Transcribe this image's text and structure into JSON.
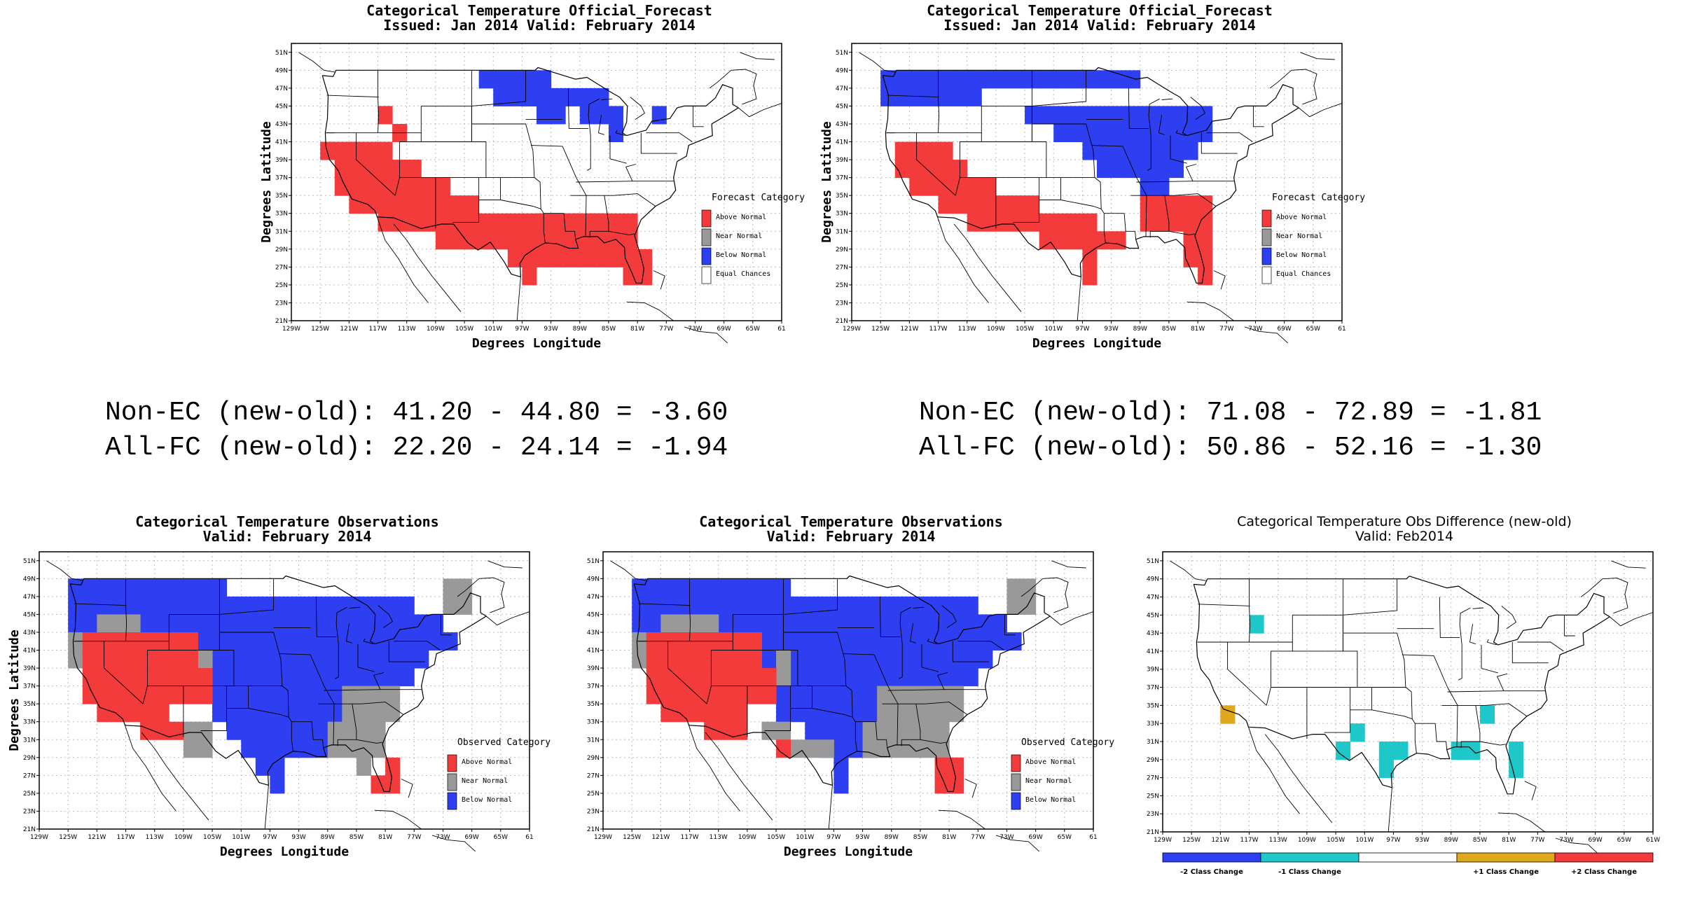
{
  "maps": [
    {
      "id": "fc1",
      "title": [
        "Categorical Temperature Official_Forecast",
        "Issued: Jan 2014 Valid: February 2014"
      ],
      "xlabel": "Degrees Longitude",
      "ylabel": "Degrees Latitude",
      "legend": {
        "title": "Forecast Category",
        "items": [
          {
            "label": "Above Normal",
            "color": "#f33b3b"
          },
          {
            "label": "Near Normal",
            "color": "#999999"
          },
          {
            "label": "Below Normal",
            "color": "#2e3ff2"
          },
          {
            "label": "Equal Chances",
            "color": "#ffffff"
          }
        ]
      }
    },
    {
      "id": "fc2",
      "title": [
        "Categorical Temperature Official_Forecast",
        "Issued: Jan 2014 Valid: February 2014"
      ],
      "xlabel": "Degrees Longitude",
      "ylabel": "Degrees Latitude",
      "legend": {
        "title": "Forecast Category",
        "items": [
          {
            "label": "Above Normal",
            "color": "#f33b3b"
          },
          {
            "label": "Near Normal",
            "color": "#999999"
          },
          {
            "label": "Below Normal",
            "color": "#2e3ff2"
          },
          {
            "label": "Equal Chances",
            "color": "#ffffff"
          }
        ]
      }
    },
    {
      "id": "obs1",
      "title": [
        "Categorical Temperature Observations",
        "Valid: February 2014"
      ],
      "xlabel": "Degrees Longitude",
      "ylabel": "Degrees Latitude",
      "legend": {
        "title": "Observed Category",
        "items": [
          {
            "label": "Above Normal",
            "color": "#f33b3b"
          },
          {
            "label": "Near Normal",
            "color": "#999999"
          },
          {
            "label": "Below Normal",
            "color": "#2e3ff2"
          }
        ]
      }
    },
    {
      "id": "obs2",
      "title": [
        "Categorical Temperature Observations",
        "Valid: February 2014"
      ],
      "xlabel": "Degrees Longitude",
      "ylabel": "",
      "legend": {
        "title": "Observed Category",
        "items": [
          {
            "label": "Above Normal",
            "color": "#f33b3b"
          },
          {
            "label": "Near Normal",
            "color": "#999999"
          },
          {
            "label": "Below Normal",
            "color": "#2e3ff2"
          }
        ]
      }
    },
    {
      "id": "diff",
      "title": [
        "Categorical Temperature Obs Difference (new-old)",
        "Valid: Feb2014"
      ],
      "xlabel": "",
      "ylabel": "",
      "colorbar": [
        {
          "label": "-2 Class Change",
          "color": "#2e3ff2"
        },
        {
          "label": "-1 Class Change",
          "color": "#1fc8c8"
        },
        {
          "label": "",
          "color": "#ffffff"
        },
        {
          "label": "+1 Class Change",
          "color": "#e0a81c"
        },
        {
          "label": "+2 Class Change",
          "color": "#f33b3b"
        }
      ]
    }
  ],
  "lon_ticks": [
    "129W",
    "125W",
    "121W",
    "117W",
    "113W",
    "109W",
    "105W",
    "101W",
    "97W",
    "93W",
    "89W",
    "85W",
    "81W",
    "77W",
    "73W",
    "69W",
    "65W",
    "61"
  ],
  "lon_ticks_diff": [
    "129W",
    "125W",
    "121W",
    "117W",
    "113W",
    "109W",
    "105W",
    "101W",
    "97W",
    "93W",
    "89W",
    "85W",
    "81W",
    "77W",
    "73W",
    "69W",
    "65W",
    "61W"
  ],
  "lat_ticks": [
    "21N",
    "23N",
    "25N",
    "27N",
    "29N",
    "31N",
    "33N",
    "35N",
    "37N",
    "39N",
    "41N",
    "43N",
    "45N",
    "47N",
    "49N",
    "51N"
  ],
  "stats": [
    {
      "line1": "Non-EC (new-old): 41.20 - 44.80 = -3.60",
      "line2": "All-FC (new-old): 22.20 - 24.14 = -1.94"
    },
    {
      "line1": "Non-EC (new-old): 71.08 - 72.89 = -1.81",
      "line2": "All-FC (new-old): 50.86 - 52.16 = -1.30"
    }
  ],
  "colors": {
    "above": "#f33b3b",
    "near": "#999999",
    "below": "#2e3ff2",
    "minus1": "#1fc8c8",
    "plus1": "#e0a81c"
  }
}
